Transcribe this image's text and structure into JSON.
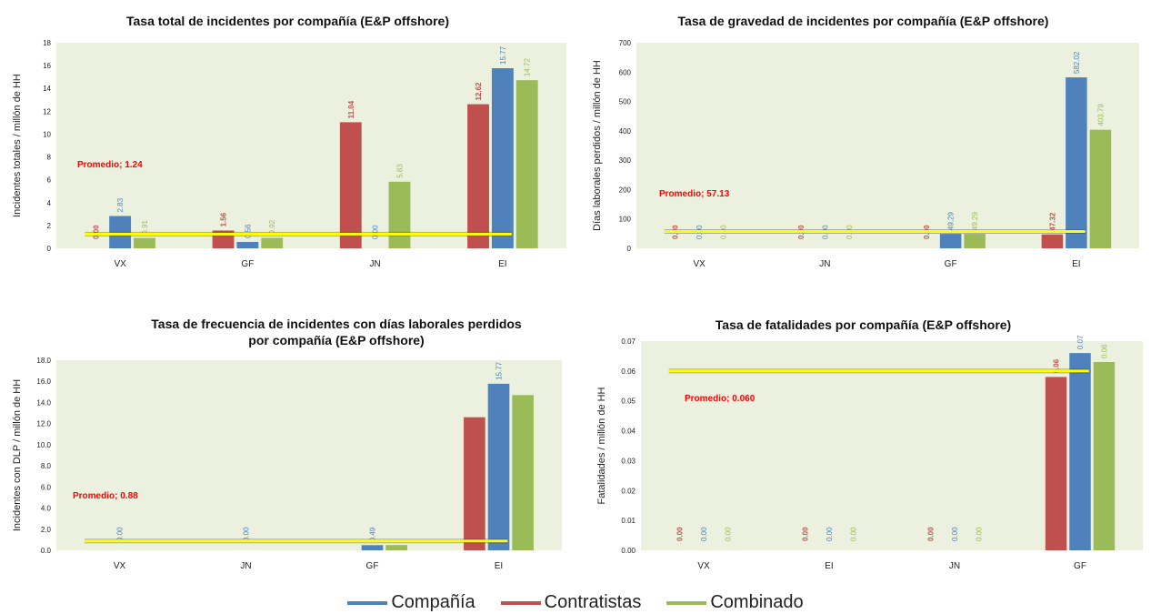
{
  "colors": {
    "Compañía": "#4f81bd",
    "Contratistas": "#c0504d",
    "Combinado": "#9bbb59",
    "average": "#ffff00",
    "plot_bg": "#ebf1de",
    "avg_text": "#ff0000"
  },
  "legend": [
    {
      "name": "Compañía",
      "color": "#4f81bd"
    },
    {
      "name": "Contratistas",
      "color": "#c0504d"
    },
    {
      "name": "Combinado",
      "color": "#9bbb59"
    }
  ],
  "chart_data": [
    {
      "type": "bar",
      "title": "Tasa total de incidentes por compañía (E&P offshore)",
      "ylabel": "Incidentes totales / millón de HH",
      "categories": [
        "VX",
        "GF",
        "JN",
        "EI"
      ],
      "ylim": [
        0,
        18
      ],
      "yticks": [
        "0",
        "2",
        "4",
        "6",
        "8",
        "10",
        "12",
        "14",
        "16",
        "18"
      ],
      "series": [
        {
          "name": "Contratistas",
          "values": [
            0.0,
            1.56,
            11.04,
            12.62
          ],
          "labels": [
            "0.00",
            "1.56",
            "11.04",
            "12.62"
          ]
        },
        {
          "name": "Compañía",
          "values": [
            2.83,
            0.56,
            0.0,
            15.77
          ],
          "labels": [
            "2.83",
            "0.56",
            "0.00",
            "15.77"
          ]
        },
        {
          "name": "Combinado",
          "values": [
            0.91,
            0.92,
            5.83,
            14.72
          ],
          "labels": [
            "0.91",
            "0.92",
            "5.83",
            "14.72"
          ]
        }
      ],
      "average": {
        "value": 1.24,
        "label": "Promedio; 1.24"
      }
    },
    {
      "type": "bar",
      "title": "Tasa de gravedad de incidentes por compañía (E&P offshore)",
      "ylabel": "Días laborales perdidos / millón de HH",
      "categories": [
        "VX",
        "JN",
        "GF",
        "EI"
      ],
      "ylim": [
        0,
        700
      ],
      "yticks": [
        "0",
        "100",
        "200",
        "300",
        "400",
        "500",
        "600",
        "700"
      ],
      "series": [
        {
          "name": "Contratistas",
          "values": [
            0.0,
            0.0,
            0.0,
            47.32
          ],
          "labels": [
            "0.00",
            "0.00",
            "0.00",
            "47.32"
          ]
        },
        {
          "name": "Compañía",
          "values": [
            0.0,
            0.0,
            49.29,
            582.02
          ],
          "labels": [
            "0.00",
            "0.00",
            "49.29",
            "582.02"
          ]
        },
        {
          "name": "Combinado",
          "values": [
            0.0,
            0.0,
            49.29,
            403.79
          ],
          "labels": [
            "0.00",
            "0.00",
            "49.29",
            "403.79"
          ]
        }
      ],
      "average": {
        "value": 57.13,
        "label": "Promedio; 57.13"
      }
    },
    {
      "type": "bar",
      "title": "Tasa de frecuencia de incidentes con días laborales perdidos por compañía (E&P offshore)",
      "ylabel": "Incidentes con DLP / millón de HH",
      "categories": [
        "VX",
        "JN",
        "GF",
        "EI"
      ],
      "ylim": [
        0,
        18
      ],
      "yticks": [
        "0.0",
        "2.0",
        "4.0",
        "6.0",
        "8.0",
        "10.0",
        "12.0",
        "14.0",
        "16.0",
        "18.0"
      ],
      "series": [
        {
          "name": "Contratistas",
          "values": [
            0,
            0,
            0,
            12.6
          ],
          "labels": [
            "",
            "",
            "",
            ""
          ]
        },
        {
          "name": "Compañía",
          "values": [
            0.0,
            0.0,
            0.49,
            15.77
          ],
          "labels": [
            "0.00",
            "0.00",
            "0.49",
            "15.77"
          ]
        },
        {
          "name": "Combinado",
          "values": [
            0,
            0,
            0.5,
            14.7
          ],
          "labels": [
            "",
            "",
            "",
            ""
          ]
        }
      ],
      "average": {
        "value": 0.88,
        "label": "Promedio; 0.88"
      }
    },
    {
      "type": "bar",
      "title": "Tasa de fatalidades por compañía (E&P offshore)",
      "ylabel": "Fatalidades / millón de HH",
      "categories": [
        "VX",
        "EI",
        "JN",
        "GF"
      ],
      "ylim": [
        0,
        0.07
      ],
      "yticks": [
        "0.00",
        "0.01",
        "0.02",
        "0.03",
        "0.04",
        "0.05",
        "0.06",
        "0.07"
      ],
      "series": [
        {
          "name": "Contratistas",
          "values": [
            0,
            0,
            0,
            0.058
          ],
          "labels": [
            "0.00",
            "0.00",
            "0.00",
            "0.06"
          ]
        },
        {
          "name": "Compañía",
          "values": [
            0,
            0,
            0,
            0.066
          ],
          "labels": [
            "0.00",
            "0.00",
            "0.00",
            "0.07"
          ]
        },
        {
          "name": "Combinado",
          "values": [
            0,
            0,
            0,
            0.063
          ],
          "labels": [
            "0.00",
            "0.00",
            "0.00",
            "0.06"
          ]
        }
      ],
      "average": {
        "value": 0.06,
        "label": "Promedio; 0.060"
      }
    }
  ]
}
